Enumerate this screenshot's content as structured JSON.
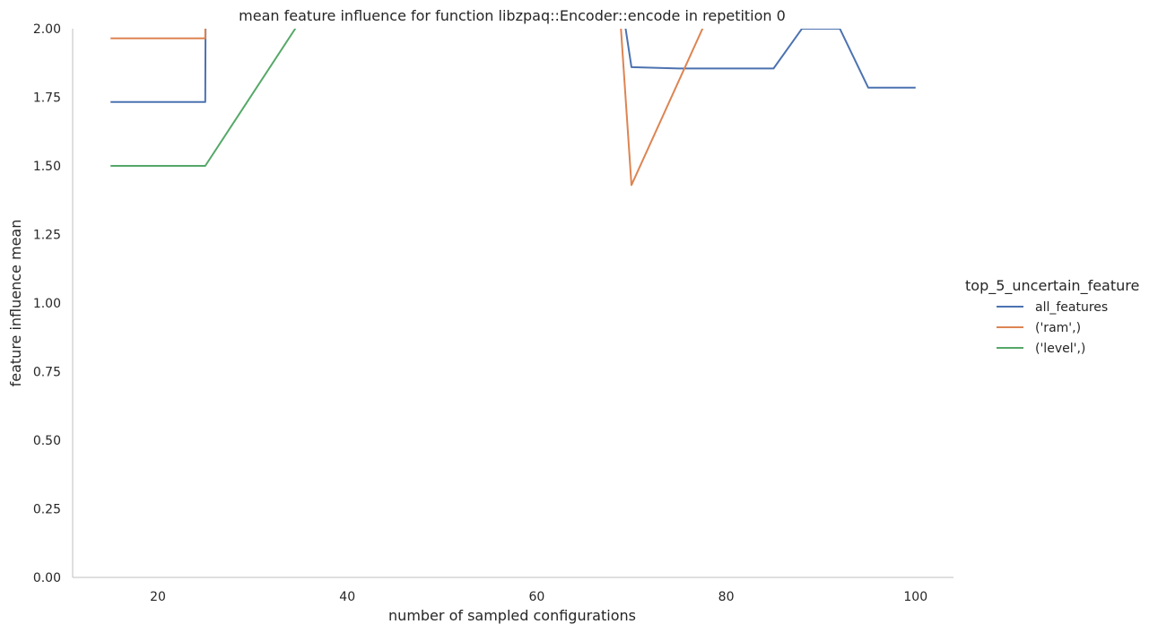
{
  "chart_data": {
    "type": "line",
    "title": "mean feature influence for function libzpaq::Encoder::encode in repetition 0",
    "xlabel": "number of sampled configurations",
    "ylabel": "feature influence mean",
    "xlim": [
      11,
      104
    ],
    "ylim": [
      0,
      2
    ],
    "x_ticks": [
      20,
      40,
      60,
      80,
      100
    ],
    "y_ticks": [
      0.0,
      0.25,
      0.5,
      0.75,
      1.0,
      1.25,
      1.5,
      1.75,
      2.0
    ],
    "x_tick_labels": [
      "20",
      "40",
      "60",
      "80",
      "100"
    ],
    "y_tick_labels": [
      "0.00",
      "0.25",
      "0.50",
      "0.75",
      "1.00",
      "1.25",
      "1.50",
      "1.75",
      "2.00"
    ],
    "grid": false,
    "legend_title": "top_5_uncertain_feature",
    "legend_position": "right",
    "series": [
      {
        "name": "all_features",
        "color": "#4c72b0",
        "x": [
          15,
          25,
          25.1,
          68.5,
          70,
          75,
          80,
          85,
          88,
          92,
          95,
          100
        ],
        "y": [
          1.733,
          1.733,
          2.6,
          2.2,
          1.86,
          1.855,
          1.855,
          1.855,
          2.0,
          2.0,
          1.785,
          1.785
        ]
      },
      {
        "name": "('ram',)",
        "color": "#dd8452",
        "x": [
          15,
          25,
          25.1,
          68.5,
          70,
          77.5,
          80
        ],
        "y": [
          1.965,
          1.965,
          2.6,
          2.2,
          1.43,
          2.0,
          2.2
        ]
      },
      {
        "name": "('level',)",
        "color": "#55a868",
        "x": [
          15,
          25,
          34.5,
          40
        ],
        "y": [
          1.5,
          1.5,
          2.0,
          2.3
        ]
      }
    ]
  }
}
